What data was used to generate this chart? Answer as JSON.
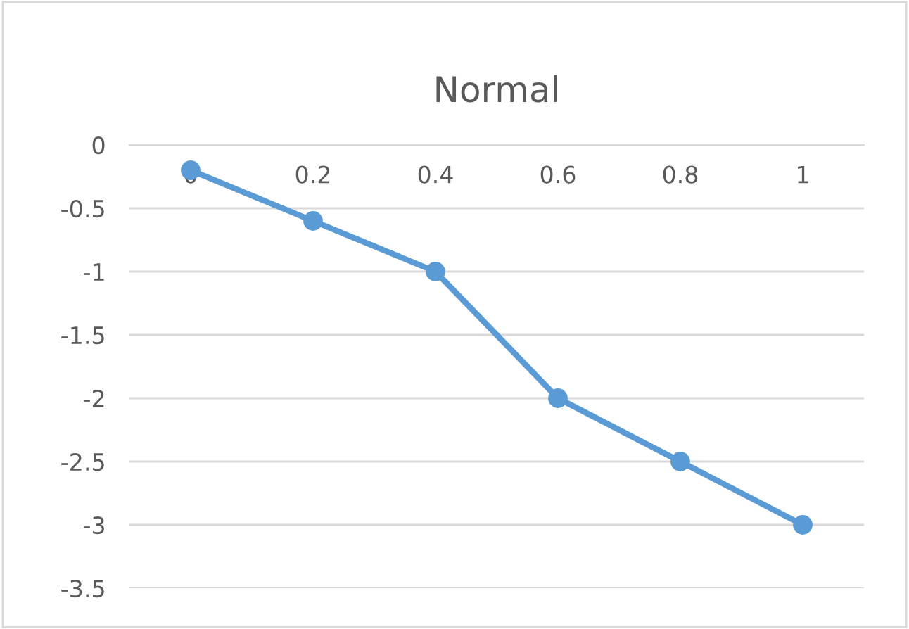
{
  "chart_data": {
    "type": "line",
    "title": "Normal",
    "categories": [
      "0",
      "0.2",
      "0.4",
      "0.6",
      "0.8",
      "1"
    ],
    "series": [
      {
        "color": "#5b9bd5",
        "values": [
          -0.2,
          -0.6,
          -1,
          -2,
          -2.5,
          -3
        ]
      }
    ],
    "ylim": [
      -3.5,
      0
    ],
    "yticks": [
      0,
      -0.5,
      -1,
      -1.5,
      -2,
      -2.5,
      -3,
      -3.5
    ],
    "grid": "y",
    "marker": "circle",
    "line_style": "solid",
    "legend": false
  }
}
